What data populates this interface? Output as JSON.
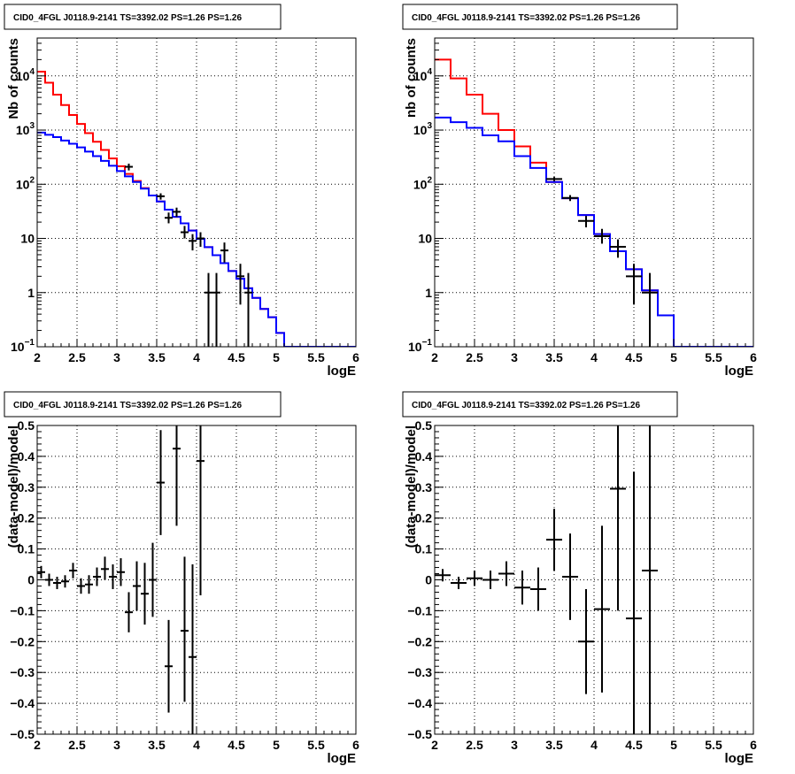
{
  "chart_data": [
    {
      "type": "line",
      "title": "CID0_4FGL J0118.9-2141 TS=3392.02 PS=1.26 PS=1.26",
      "xlabel": "logE",
      "ylabel": "Nb of counts",
      "yscale": "log",
      "xlim": [
        2,
        6
      ],
      "ylim": [
        0.1,
        50000
      ],
      "grid": true,
      "x_ticks": [
        "2",
        "2.5",
        "3",
        "3.5",
        "4",
        "4.5",
        "5",
        "5.5",
        "6"
      ],
      "y_ticks": [
        {
          "v": 0.1,
          "base": "10",
          "exp": "−1"
        },
        {
          "v": 1,
          "label": "1"
        },
        {
          "v": 10,
          "label": "10"
        },
        {
          "v": 100,
          "base": "10",
          "exp": "2"
        },
        {
          "v": 1000,
          "base": "10",
          "exp": "3"
        },
        {
          "v": 10000,
          "base": "10",
          "exp": "4"
        }
      ],
      "bin_edges": [
        2.0,
        2.1,
        2.2,
        2.3,
        2.4,
        2.5,
        2.6,
        2.7,
        2.8,
        2.9,
        3.0,
        3.1,
        3.2,
        3.3,
        3.4,
        3.5,
        3.6,
        3.7,
        3.8,
        3.9,
        4.0,
        4.1,
        4.2,
        4.3,
        4.4,
        4.5,
        4.6,
        4.7,
        4.8,
        4.9,
        5.0,
        5.1,
        5.2,
        5.3,
        5.4,
        5.5,
        5.6,
        5.7,
        5.8,
        5.9,
        6.0
      ],
      "series": [
        {
          "color": "#ff0000",
          "values": [
            12000,
            7500,
            4500,
            2900,
            1900,
            1300,
            880,
            610,
            430,
            300,
            215,
            155,
            115,
            85,
            62,
            48,
            34,
            25,
            19,
            14,
            9.8,
            6.9,
            4.9,
            3.5,
            2.5,
            1.8,
            1.2,
            0.8,
            0.5,
            0.35,
            0.18,
            0.1,
            0.1,
            0.1,
            0.1,
            0.1,
            0.1,
            0.1,
            0.1,
            0.1
          ]
        },
        {
          "color": "#0000ff",
          "values": [
            900,
            820,
            740,
            640,
            560,
            480,
            400,
            330,
            270,
            220,
            175,
            140,
            110,
            83,
            62,
            48,
            34,
            25,
            19,
            14,
            9.8,
            6.9,
            4.9,
            3.5,
            2.5,
            1.8,
            1.2,
            0.8,
            0.5,
            0.35,
            0.18,
            0.1,
            0.1,
            0.1,
            0.1,
            0.1,
            0.1,
            0.1,
            0.1,
            0.1
          ]
        }
      ],
      "data_points": [
        {
          "x": 3.15,
          "y": 210,
          "lo": 180,
          "hi": 240
        },
        {
          "x": 3.55,
          "y": 60,
          "lo": 52,
          "hi": 68
        },
        {
          "x": 3.65,
          "y": 24,
          "lo": 19,
          "hi": 30
        },
        {
          "x": 3.75,
          "y": 31,
          "lo": 25,
          "hi": 37
        },
        {
          "x": 3.85,
          "y": 13,
          "lo": 10,
          "hi": 17
        },
        {
          "x": 3.95,
          "y": 9,
          "lo": 6,
          "hi": 12
        },
        {
          "x": 4.05,
          "y": 10,
          "lo": 7,
          "hi": 13
        },
        {
          "x": 4.15,
          "y": 1,
          "lo": 0.1,
          "hi": 2.3
        },
        {
          "x": 4.25,
          "y": 1,
          "lo": 0.1,
          "hi": 2.3
        },
        {
          "x": 4.35,
          "y": 6,
          "lo": 3.6,
          "hi": 8.4
        },
        {
          "x": 4.55,
          "y": 2,
          "lo": 0.6,
          "hi": 3.4
        },
        {
          "x": 4.65,
          "y": 1,
          "lo": 0.1,
          "hi": 2.3
        }
      ]
    },
    {
      "type": "line",
      "title": "CID0_4FGL J0118.9-2141 TS=3392.02 PS=1.26 PS=1.26",
      "xlabel": "logE",
      "ylabel": "nb of counts",
      "yscale": "log",
      "xlim": [
        2,
        6
      ],
      "ylim": [
        0.1,
        50000
      ],
      "grid": true,
      "x_ticks": [
        "2",
        "2.5",
        "3",
        "3.5",
        "4",
        "4.5",
        "5",
        "5.5",
        "6"
      ],
      "y_ticks": [
        {
          "v": 0.1,
          "base": "10",
          "exp": "−1"
        },
        {
          "v": 1,
          "label": "1"
        },
        {
          "v": 10,
          "label": "10"
        },
        {
          "v": 100,
          "base": "10",
          "exp": "2"
        },
        {
          "v": 1000,
          "base": "10",
          "exp": "3"
        },
        {
          "v": 10000,
          "base": "10",
          "exp": "4"
        }
      ],
      "bin_edges": [
        2.0,
        2.2,
        2.4,
        2.6,
        2.8,
        3.0,
        3.2,
        3.4,
        3.6,
        3.8,
        4.0,
        4.2,
        4.4,
        4.6,
        4.8,
        5.0,
        5.2,
        5.4,
        5.6,
        5.8,
        6.0
      ],
      "series": [
        {
          "color": "#ff0000",
          "values": [
            20000,
            9000,
            4500,
            2000,
            1000,
            500,
            250,
            110,
            55,
            27,
            12,
            5.8,
            2.7,
            1.1,
            0.38,
            0.1,
            0.1,
            0.1,
            0.1,
            0.1
          ]
        },
        {
          "color": "#0000ff",
          "values": [
            1700,
            1400,
            1100,
            800,
            620,
            330,
            200,
            110,
            55,
            27,
            12,
            5.8,
            2.7,
            1.1,
            0.38,
            0.1,
            0.1,
            0.1,
            0.1,
            0.1
          ]
        }
      ],
      "data_points": [
        {
          "x": 3.5,
          "y": 125,
          "lo": 114,
          "hi": 136
        },
        {
          "x": 3.7,
          "y": 56,
          "lo": 49,
          "hi": 63
        },
        {
          "x": 3.9,
          "y": 21,
          "lo": 16,
          "hi": 26
        },
        {
          "x": 4.1,
          "y": 11,
          "lo": 8,
          "hi": 15
        },
        {
          "x": 4.3,
          "y": 7,
          "lo": 4.4,
          "hi": 9.6
        },
        {
          "x": 4.5,
          "y": 2,
          "lo": 0.6,
          "hi": 3.4
        },
        {
          "x": 4.7,
          "y": 1,
          "lo": 0.1,
          "hi": 2.3
        }
      ]
    },
    {
      "type": "scatter",
      "title": "CID0_4FGL J0118.9-2141 TS=3392.02 PS=1.26 PS=1.26",
      "xlabel": "logE",
      "ylabel": "(data-model)/model",
      "xlim": [
        2,
        6
      ],
      "ylim": [
        -0.5,
        0.5
      ],
      "grid": true,
      "x_ticks": [
        "2",
        "2.5",
        "3",
        "3.5",
        "4",
        "4.5",
        "5",
        "5.5",
        "6"
      ],
      "y_ticks": [
        "−0.5",
        "−0.4",
        "−0.3",
        "−0.2",
        "−0.1",
        "0",
        "0.1",
        "0.2",
        "0.3",
        "0.4",
        "0.5"
      ],
      "x_halfwidth": 0.05,
      "data_points": [
        {
          "x": 2.05,
          "y": 0.025,
          "lo": 0.005,
          "hi": 0.045
        },
        {
          "x": 2.15,
          "y": 0.0,
          "lo": -0.02,
          "hi": 0.02
        },
        {
          "x": 2.25,
          "y": -0.01,
          "lo": -0.03,
          "hi": 0.01
        },
        {
          "x": 2.35,
          "y": -0.005,
          "lo": -0.025,
          "hi": 0.015
        },
        {
          "x": 2.45,
          "y": 0.03,
          "lo": 0.005,
          "hi": 0.055
        },
        {
          "x": 2.55,
          "y": -0.02,
          "lo": -0.045,
          "hi": 0.005
        },
        {
          "x": 2.65,
          "y": -0.015,
          "lo": -0.045,
          "hi": 0.015
        },
        {
          "x": 2.75,
          "y": 0.01,
          "lo": -0.02,
          "hi": 0.04
        },
        {
          "x": 2.85,
          "y": 0.035,
          "lo": 0.0,
          "hi": 0.075
        },
        {
          "x": 2.95,
          "y": 0.01,
          "lo": -0.03,
          "hi": 0.05
        },
        {
          "x": 3.05,
          "y": 0.025,
          "lo": -0.02,
          "hi": 0.07
        },
        {
          "x": 3.15,
          "y": -0.105,
          "lo": -0.17,
          "hi": -0.04
        },
        {
          "x": 3.25,
          "y": -0.02,
          "lo": -0.1,
          "hi": 0.06
        },
        {
          "x": 3.35,
          "y": -0.045,
          "lo": -0.145,
          "hi": 0.055
        },
        {
          "x": 3.45,
          "y": 0.0,
          "lo": -0.12,
          "hi": 0.12
        },
        {
          "x": 3.55,
          "y": 0.315,
          "lo": 0.145,
          "hi": 0.485
        },
        {
          "x": 3.65,
          "y": -0.28,
          "lo": -0.43,
          "hi": -0.13
        },
        {
          "x": 3.75,
          "y": 0.425,
          "lo": 0.175,
          "hi": 0.675
        },
        {
          "x": 3.85,
          "y": -0.165,
          "lo": -0.395,
          "hi": 0.075
        },
        {
          "x": 3.95,
          "y": -0.25,
          "lo": -0.55,
          "hi": 0.05
        },
        {
          "x": 4.05,
          "y": 0.385,
          "lo": -0.05,
          "hi": 0.82
        }
      ]
    },
    {
      "type": "scatter",
      "title": "CID0_4FGL J0118.9-2141 TS=3392.02 PS=1.26 PS=1.26",
      "xlabel": "logE",
      "ylabel": "(data-model)/model",
      "xlim": [
        2,
        6
      ],
      "ylim": [
        -0.5,
        0.5
      ],
      "grid": true,
      "x_ticks": [
        "2",
        "2.5",
        "3",
        "3.5",
        "4",
        "4.5",
        "5",
        "5.5",
        "6"
      ],
      "y_ticks": [
        "−0.5",
        "−0.4",
        "−0.3",
        "−0.2",
        "−0.1",
        "0",
        "0.1",
        "0.2",
        "0.3",
        "0.4",
        "0.5"
      ],
      "x_halfwidth": 0.1,
      "data_points": [
        {
          "x": 2.1,
          "y": 0.015,
          "lo": -0.005,
          "hi": 0.035
        },
        {
          "x": 2.3,
          "y": -0.01,
          "lo": -0.03,
          "hi": 0.01
        },
        {
          "x": 2.5,
          "y": 0.005,
          "lo": -0.02,
          "hi": 0.03
        },
        {
          "x": 2.7,
          "y": 0.0,
          "lo": -0.03,
          "hi": 0.03
        },
        {
          "x": 2.9,
          "y": 0.02,
          "lo": -0.02,
          "hi": 0.06
        },
        {
          "x": 3.1,
          "y": -0.025,
          "lo": -0.08,
          "hi": 0.03
        },
        {
          "x": 3.3,
          "y": -0.03,
          "lo": -0.1,
          "hi": 0.04
        },
        {
          "x": 3.5,
          "y": 0.13,
          "lo": 0.03,
          "hi": 0.23
        },
        {
          "x": 3.7,
          "y": 0.01,
          "lo": -0.13,
          "hi": 0.15
        },
        {
          "x": 3.9,
          "y": -0.2,
          "lo": -0.37,
          "hi": -0.03
        },
        {
          "x": 4.1,
          "y": -0.095,
          "lo": -0.365,
          "hi": 0.175
        },
        {
          "x": 4.3,
          "y": 0.295,
          "lo": -0.1,
          "hi": 0.69
        },
        {
          "x": 4.5,
          "y": -0.125,
          "lo": -0.6,
          "hi": 0.35
        },
        {
          "x": 4.7,
          "y": 0.03,
          "lo": -0.6,
          "hi": 0.66
        }
      ]
    }
  ]
}
